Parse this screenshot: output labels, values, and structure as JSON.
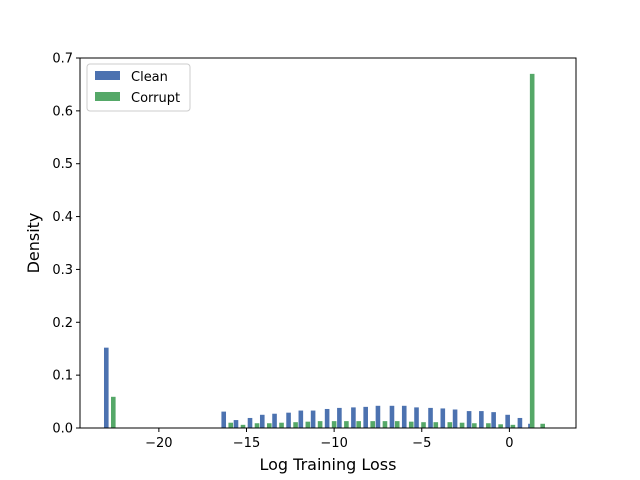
{
  "chart_data": {
    "type": "bar",
    "title": "",
    "xlabel": "Log Training Loss",
    "ylabel": "Density",
    "xlim": [
      -24.5,
      3.8
    ],
    "ylim": [
      0,
      0.7
    ],
    "xticks": [
      -20,
      -15,
      -10,
      -5,
      0
    ],
    "xtick_labels": [
      "−20",
      "−15",
      "−10",
      "−5",
      "0"
    ],
    "yticks": [
      0.0,
      0.1,
      0.2,
      0.3,
      0.4,
      0.5,
      0.6,
      0.7
    ],
    "ytick_labels": [
      "0.0",
      "0.1",
      "0.2",
      "0.3",
      "0.4",
      "0.5",
      "0.6",
      "0.7"
    ],
    "grid": false,
    "legend_position": "top-left",
    "series": [
      {
        "name": "Clean",
        "color": "#4c72b0",
        "bins": [
          [
            -23.0,
            0.152
          ],
          [
            -16.3,
            0.031
          ],
          [
            -15.6,
            0.015
          ],
          [
            -14.8,
            0.019
          ],
          [
            -14.1,
            0.025
          ],
          [
            -13.4,
            0.027
          ],
          [
            -12.6,
            0.029
          ],
          [
            -11.9,
            0.033
          ],
          [
            -11.2,
            0.033
          ],
          [
            -10.4,
            0.036
          ],
          [
            -9.7,
            0.038
          ],
          [
            -8.9,
            0.039
          ],
          [
            -8.2,
            0.04
          ],
          [
            -7.5,
            0.042
          ],
          [
            -6.7,
            0.042
          ],
          [
            -6.0,
            0.042
          ],
          [
            -5.3,
            0.039
          ],
          [
            -4.5,
            0.038
          ],
          [
            -3.8,
            0.037
          ],
          [
            -3.1,
            0.035
          ],
          [
            -2.3,
            0.032
          ],
          [
            -1.6,
            0.032
          ],
          [
            -0.9,
            0.03
          ],
          [
            -0.1,
            0.025
          ],
          [
            0.6,
            0.019
          ],
          [
            1.2,
            0.008
          ]
        ]
      },
      {
        "name": "Corrupt",
        "color": "#55a868",
        "bins": [
          [
            -22.6,
            0.059
          ],
          [
            -15.9,
            0.01
          ],
          [
            -15.2,
            0.006
          ],
          [
            -14.4,
            0.009
          ],
          [
            -13.7,
            0.009
          ],
          [
            -13.0,
            0.01
          ],
          [
            -12.2,
            0.011
          ],
          [
            -11.5,
            0.012
          ],
          [
            -10.8,
            0.013
          ],
          [
            -10.0,
            0.013
          ],
          [
            -9.3,
            0.013
          ],
          [
            -8.6,
            0.013
          ],
          [
            -7.8,
            0.013
          ],
          [
            -7.1,
            0.013
          ],
          [
            -6.4,
            0.013
          ],
          [
            -5.6,
            0.012
          ],
          [
            -4.9,
            0.011
          ],
          [
            -4.2,
            0.011
          ],
          [
            -3.4,
            0.011
          ],
          [
            -2.7,
            0.01
          ],
          [
            -2.0,
            0.009
          ],
          [
            -1.2,
            0.009
          ],
          [
            -0.5,
            0.007
          ],
          [
            0.2,
            0.006
          ],
          [
            1.3,
            0.67
          ],
          [
            1.9,
            0.008
          ]
        ]
      }
    ]
  }
}
